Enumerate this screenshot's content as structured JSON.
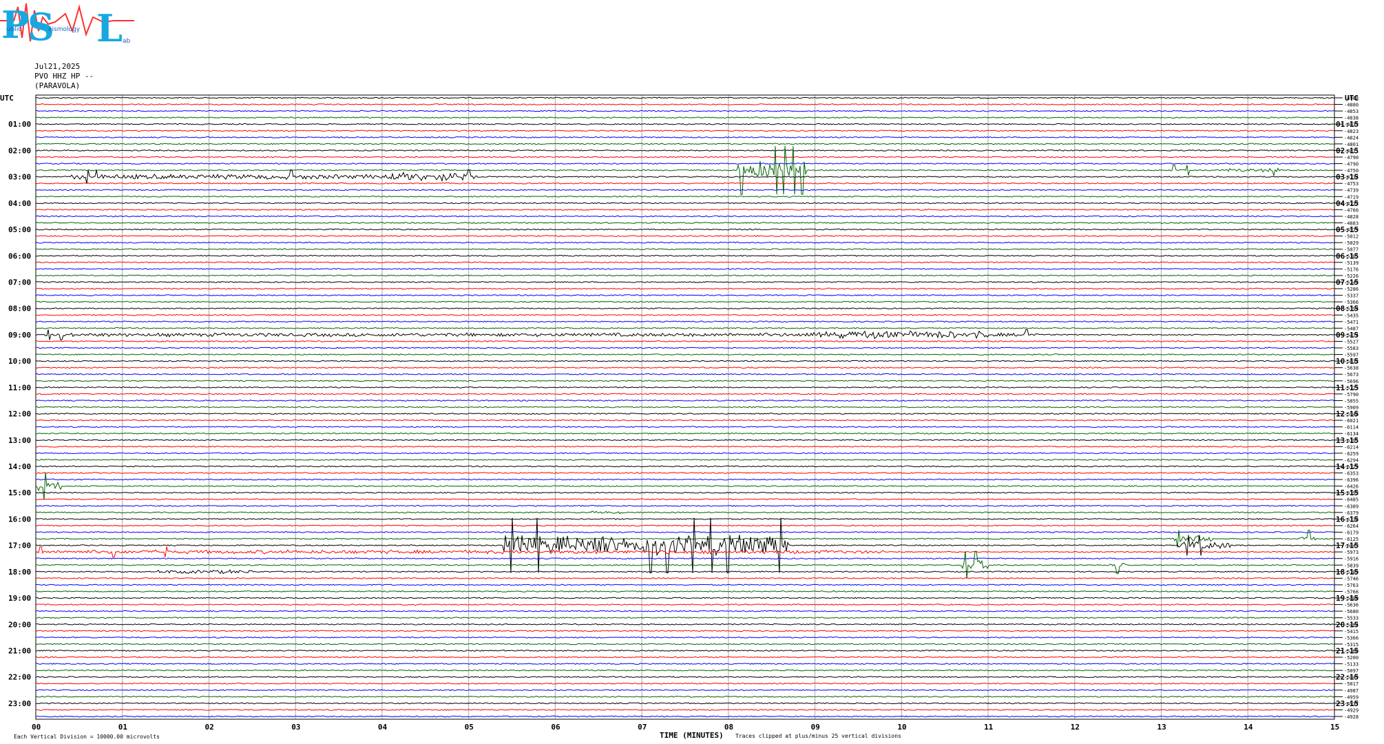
{
  "logo": {
    "text": "PSL",
    "subtext": [
      "ublic",
      "eismology",
      "ab"
    ]
  },
  "header": {
    "date": "Jul21,2025",
    "station": "PVO HHZ HP --",
    "location": "(PARAVOLA)"
  },
  "left_axis_label": "UTC",
  "right_axis_label": "UTC",
  "footer": {
    "left": "Each Vertical Division = 10000.00 microvolts",
    "center": "TIME (MINUTES)",
    "clip_note": "Traces clipped at plus/minus 25 vertical divisions"
  },
  "chart_data": {
    "type": "line",
    "title": "",
    "xlabel": "TIME (MINUTES)",
    "xlim": [
      0,
      15
    ],
    "x_ticks": [
      "00",
      "01",
      "02",
      "03",
      "04",
      "05",
      "06",
      "07",
      "08",
      "09",
      "10",
      "11",
      "12",
      "13",
      "14",
      "15"
    ],
    "left_hour_labels": [
      "01:00",
      "02:00",
      "03:00",
      "04:00",
      "05:00",
      "06:00",
      "07:00",
      "08:00",
      "09:00",
      "10:00",
      "11:00",
      "12:00",
      "13:00",
      "14:00",
      "15:00",
      "16:00",
      "17:00",
      "18:00",
      "19:00",
      "20:00",
      "21:00",
      "22:00",
      "23:00"
    ],
    "right_hour_labels": [
      "01:15",
      "02:15",
      "03:15",
      "04:15",
      "05:15",
      "06:15",
      "07:15",
      "08:15",
      "09:15",
      "10:15",
      "11:15",
      "12:15",
      "13:15",
      "14:15",
      "15:15",
      "16:15",
      "17:15",
      "18:15",
      "19:15",
      "20:15",
      "21:15",
      "22:15",
      "23:15"
    ],
    "trace_colors": [
      "#000000",
      "#ff0000",
      "#0000ff",
      "#006400"
    ],
    "trace_offsets": [
      "-4908",
      "-4880",
      "-4853",
      "-4838",
      "-4833",
      "-4823",
      "-4824",
      "-4801",
      "-4811",
      "-4790",
      "-4790",
      "-4750",
      "-4734",
      "-4753",
      "-4739",
      "-4719",
      "-4733",
      "-4766",
      "-4828",
      "-4883",
      "-4979",
      "-5012",
      "-5029",
      "-5077",
      "-5105",
      "-5139",
      "-5176",
      "-5226",
      "-5249",
      "-5286",
      "-5337",
      "-5366",
      "-5394",
      "-5435",
      "-5471",
      "-5487",
      "-5474",
      "-5527",
      "-5583",
      "-5597",
      "-5632",
      "-5638",
      "-5673",
      "-5696",
      "-5723",
      "-5790",
      "-5855",
      "-5909",
      "-5948",
      "-6021",
      "-6114",
      "-6134",
      "-6195",
      "-6214",
      "-6259",
      "-6294",
      "-6329",
      "-6353",
      "-6396",
      "-6426",
      "-6393",
      "-6485",
      "-6389",
      "-6379",
      "-6338",
      "-6264",
      "-6179",
      "-6125",
      "-6043",
      "-5973",
      "-5916",
      "-5839",
      "-5789",
      "-5746",
      "-5763",
      "-5766",
      "-5680",
      "-5636",
      "-5680",
      "-5533",
      "-5464",
      "-5415",
      "-5366",
      "-5315",
      "-5268",
      "-5200",
      "-5133",
      "-5097",
      "-5049",
      "-5017",
      "-4987",
      "-4959",
      "-4937",
      "-4929",
      "-4928"
    ],
    "events": [
      {
        "trace": 12,
        "x0": 0.4,
        "x1": 5.1,
        "amp": 4,
        "spikes": [
          0.6,
          0.7,
          2.95,
          5.0
        ]
      },
      {
        "trace": 12,
        "x0": 4.1,
        "x1": 5.05,
        "amp": 7,
        "spikes": []
      },
      {
        "trace": 11,
        "x0": 8.1,
        "x1": 8.9,
        "amp": 14,
        "spikes": [
          8.15,
          8.55,
          8.65,
          8.75,
          8.85
        ]
      },
      {
        "trace": 11,
        "x0": 13.7,
        "x1": 14.4,
        "amp": 3,
        "spikes": [
          13.15,
          13.3,
          14.3
        ]
      },
      {
        "trace": 36,
        "x0": 0.1,
        "x1": 11.6,
        "amp": 3,
        "spikes": [
          0.15,
          0.3,
          11.45
        ]
      },
      {
        "trace": 36,
        "x0": 8.9,
        "x1": 11.0,
        "amp": 6,
        "spikes": []
      },
      {
        "trace": 59,
        "x0": 0.0,
        "x1": 0.3,
        "amp": 8,
        "spikes": [
          0.1
        ]
      },
      {
        "trace": 68,
        "x0": 5.4,
        "x1": 8.7,
        "amp": 16,
        "spikes": [
          5.5,
          5.8,
          7.1,
          7.3,
          7.6,
          7.8,
          8.0,
          8.6
        ]
      },
      {
        "trace": 68,
        "x0": 13.2,
        "x1": 13.8,
        "amp": 6,
        "spikes": [
          13.3,
          13.45
        ]
      },
      {
        "trace": 69,
        "x0": 0.0,
        "x1": 9.8,
        "amp": 3,
        "spikes": [
          0.05,
          0.9,
          1.5
        ]
      },
      {
        "trace": 71,
        "x0": 10.7,
        "x1": 11.0,
        "amp": 8,
        "spikes": [
          10.75,
          10.85
        ]
      },
      {
        "trace": 71,
        "x0": 12.4,
        "x1": 12.6,
        "amp": 5,
        "spikes": [
          12.5
        ]
      },
      {
        "trace": 67,
        "x0": 13.15,
        "x1": 13.6,
        "amp": 5,
        "spikes": [
          13.2
        ]
      },
      {
        "trace": 67,
        "x0": 14.6,
        "x1": 14.8,
        "amp": 5,
        "spikes": [
          14.7
        ]
      },
      {
        "trace": 72,
        "x0": 1.4,
        "x1": 2.5,
        "amp": 3,
        "spikes": []
      },
      {
        "trace": 63,
        "x0": 6.4,
        "x1": 6.8,
        "amp": 2,
        "spikes": []
      }
    ]
  }
}
